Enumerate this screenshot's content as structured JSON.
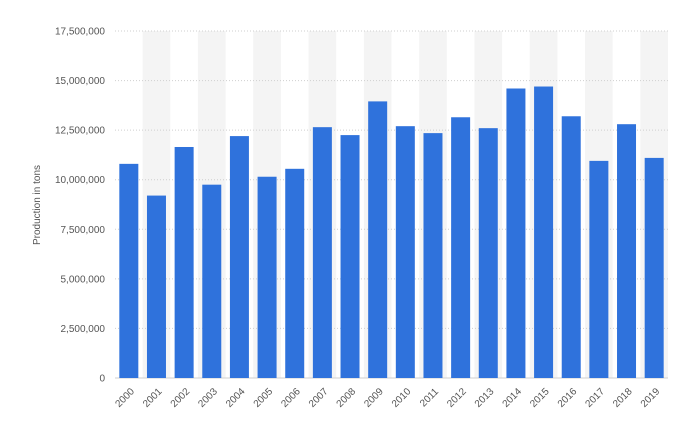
{
  "chart_data": {
    "type": "bar",
    "title": "",
    "xlabel": "",
    "ylabel": "Production in tons",
    "ylim": [
      0,
      17500000
    ],
    "yticks": [
      0,
      2500000,
      5000000,
      7500000,
      10000000,
      12500000,
      15000000,
      17500000
    ],
    "ytick_labels": [
      "0",
      "2,500,000",
      "5,000,000",
      "7,500,000",
      "10,000,000",
      "12,500,000",
      "15,000,000",
      "17,500,000"
    ],
    "grid": true,
    "legend": "none",
    "bar_color": "#2f72dc",
    "categories": [
      "2000",
      "2001",
      "2002",
      "2003",
      "2004",
      "2005",
      "2006",
      "2007",
      "2008",
      "2009",
      "2010",
      "2011",
      "2012",
      "2013",
      "2014",
      "2015",
      "2016",
      "2017",
      "2018",
      "2019"
    ],
    "values": [
      10800000,
      9200000,
      11650000,
      9750000,
      12200000,
      10150000,
      10550000,
      12650000,
      12250000,
      13950000,
      12700000,
      12350000,
      13150000,
      12600000,
      14600000,
      14700000,
      13200000,
      10950000,
      12800000,
      11100000
    ]
  }
}
